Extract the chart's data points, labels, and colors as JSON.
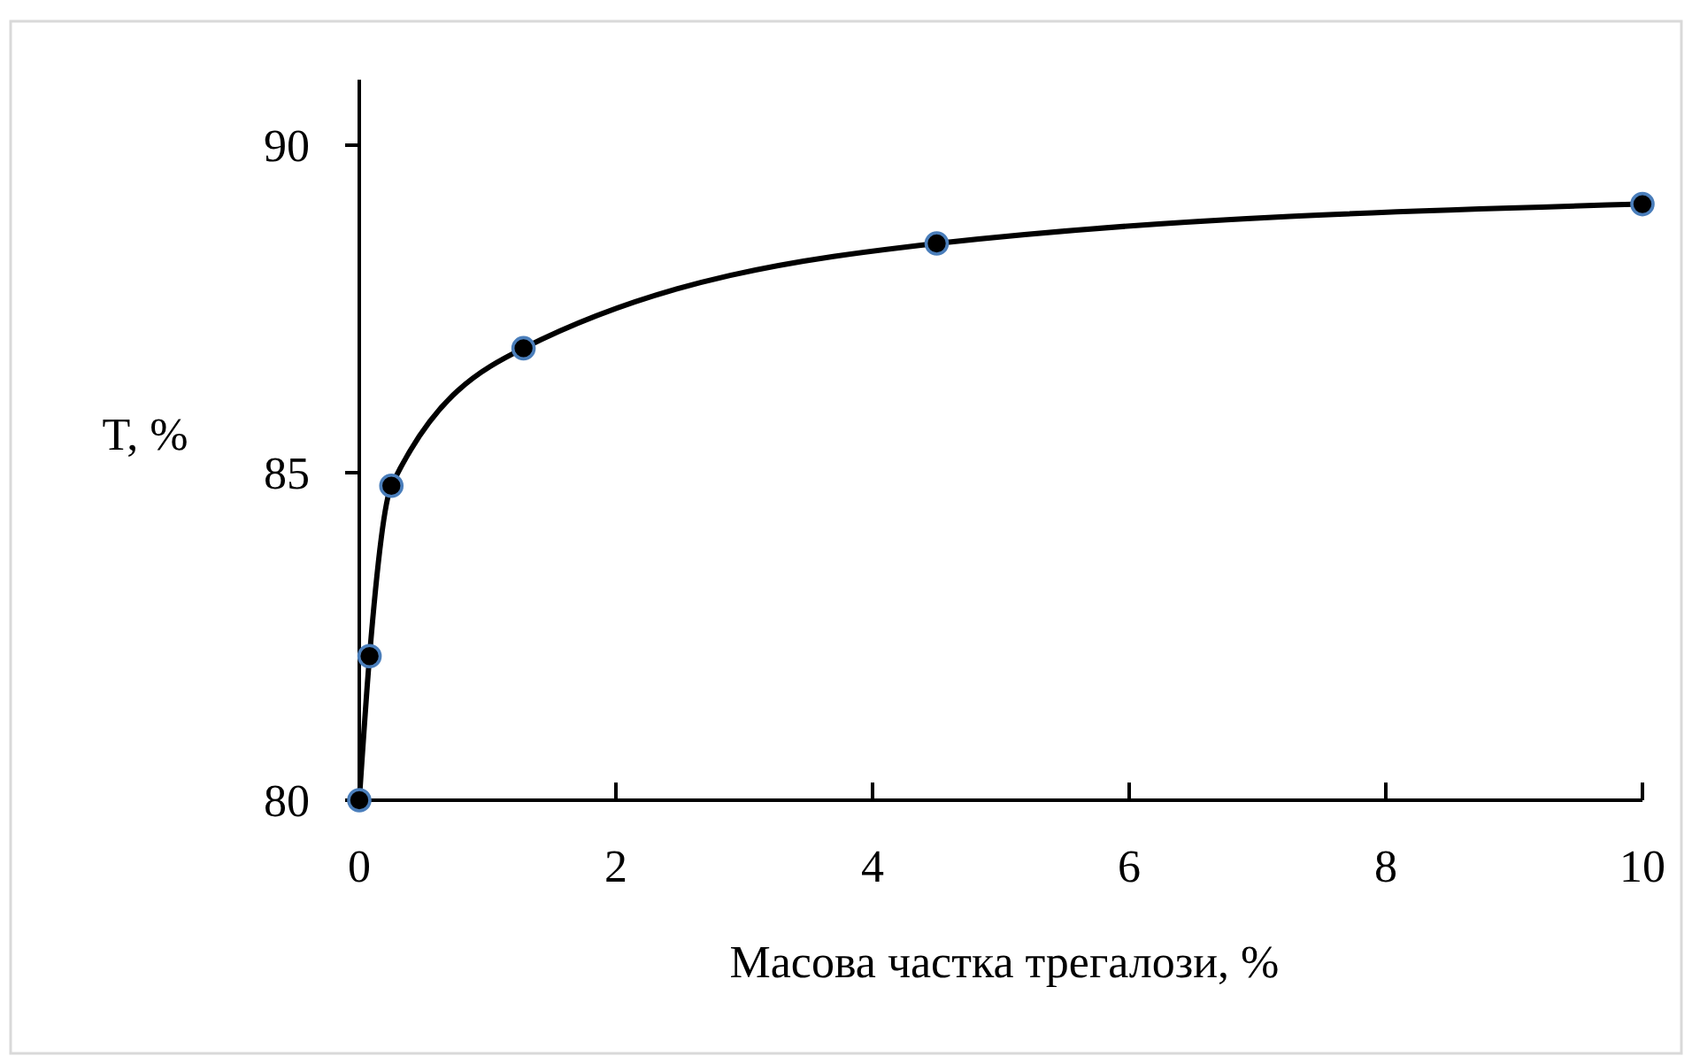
{
  "chart_data": {
    "type": "line",
    "xlabel": "Масова частка трегалози, %",
    "ylabel": "T, %",
    "x": [
      0,
      0.08,
      0.25,
      1.28,
      4.5,
      10
    ],
    "series": [
      {
        "color": "#000000",
        "values": [
          80,
          82.2,
          84.8,
          86.9,
          88.5,
          89.1
        ]
      }
    ],
    "xlim": [
      0,
      10
    ],
    "xticks": [
      0,
      2,
      4,
      6,
      8,
      10
    ],
    "ylim": [
      80,
      91
    ],
    "yticks": [
      80,
      85,
      90
    ],
    "marker": "circle",
    "line_style": "solid"
  }
}
